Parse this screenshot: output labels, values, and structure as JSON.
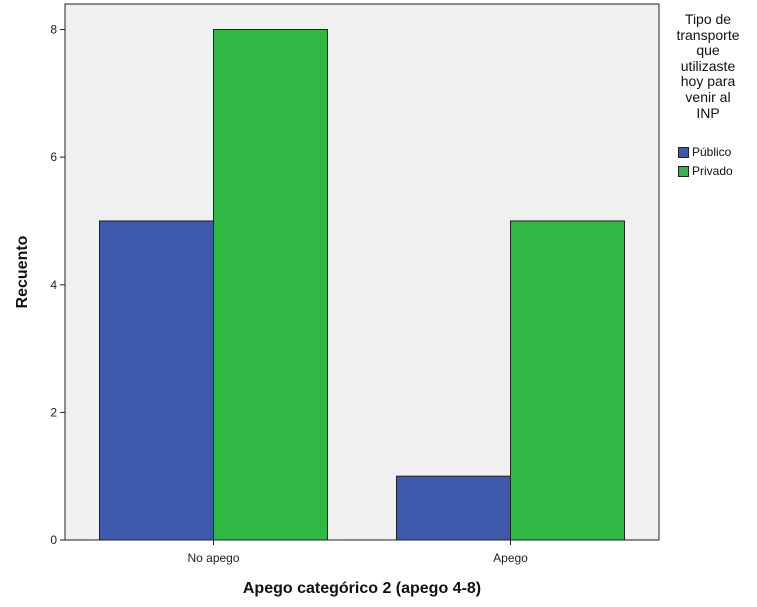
{
  "chart_data": {
    "type": "bar",
    "categories": [
      "No apego",
      "Apego"
    ],
    "series": [
      {
        "name": "Público",
        "color": "#3E58AC",
        "values": [
          5,
          1
        ]
      },
      {
        "name": "Privado",
        "color": "#2FB944",
        "values": [
          8,
          5
        ]
      }
    ],
    "xlabel": "Apego categórico 2 (apego 4-8)",
    "ylabel": "Recuento",
    "ylim": [
      0,
      8.4
    ],
    "yticks": [
      0,
      2,
      4,
      6,
      8
    ],
    "plot_background": "#F0F0F0",
    "legend": {
      "title": "Tipo de\ntransporte\nque\nutilizaste\nhoy para\nvenir al\nINP",
      "placement": "right"
    }
  }
}
